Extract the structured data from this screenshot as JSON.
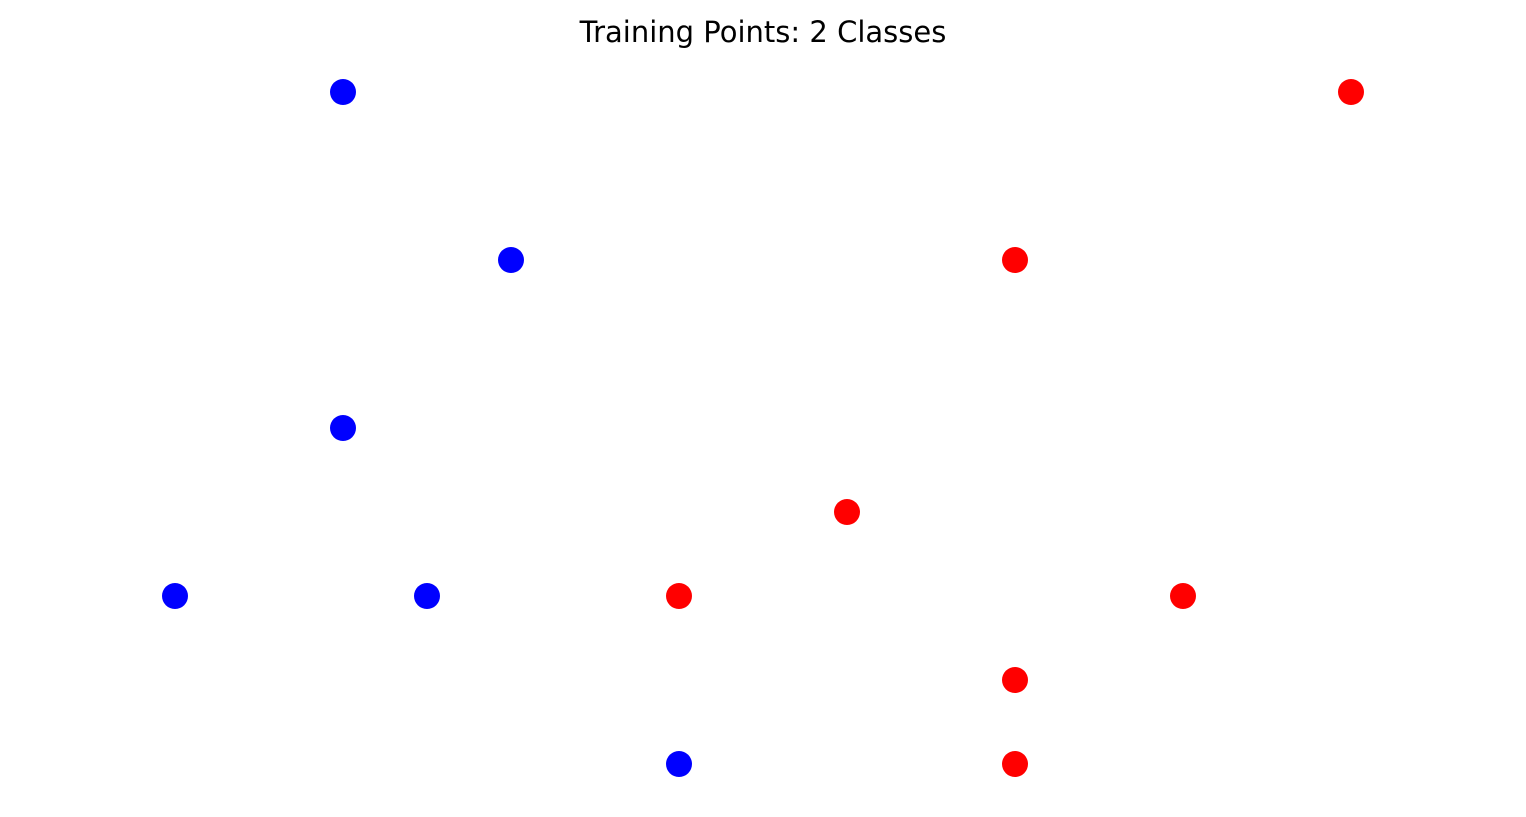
{
  "chart_data": {
    "type": "scatter",
    "title": "Training Points: 2 Classes",
    "xlabel": "",
    "ylabel": "",
    "axes_visible": false,
    "grid": false,
    "xlim": [
      -0.5,
      7.5
    ],
    "ylim": [
      -0.5,
      4.0
    ],
    "series": [
      {
        "color": "#0000ff",
        "points": [
          {
            "x": 1,
            "y": 4
          },
          {
            "x": 2,
            "y": 3
          },
          {
            "x": 1,
            "y": 2
          },
          {
            "x": 0,
            "y": 1
          },
          {
            "x": 1.5,
            "y": 1
          },
          {
            "x": 3,
            "y": 0
          }
        ]
      },
      {
        "color": "#ff0000",
        "points": [
          {
            "x": 7,
            "y": 4
          },
          {
            "x": 5,
            "y": 3
          },
          {
            "x": 4,
            "y": 1.5
          },
          {
            "x": 3,
            "y": 1
          },
          {
            "x": 6,
            "y": 1
          },
          {
            "x": 5,
            "y": 0.5
          },
          {
            "x": 5,
            "y": 0
          }
        ]
      }
    ]
  }
}
